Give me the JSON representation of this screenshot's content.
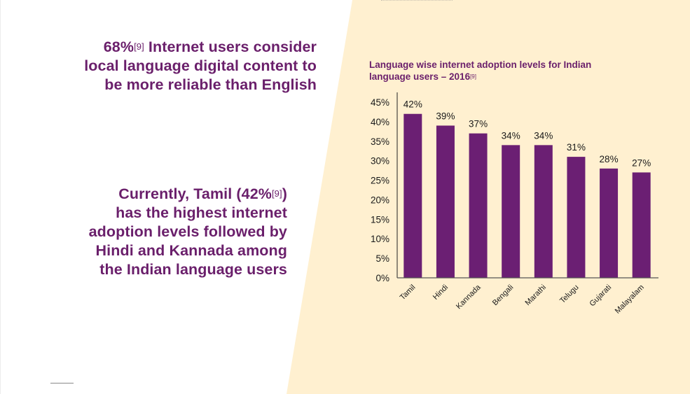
{
  "headline_1": {
    "value": "68%",
    "ref": "[9]",
    "text_line1": " Internet users consider",
    "text_line2": "local language digital content to",
    "text_line3": "be more reliable than English"
  },
  "headline_2": {
    "line1_pre": "Currently, Tamil (42%",
    "ref": "[9]",
    "line1_post": ")",
    "line2": "has the highest internet",
    "line3": "adoption levels followed by",
    "line4": "Hindi and Kannada among",
    "line5": "the Indian language users"
  },
  "colors": {
    "accent": "#6a1f6b",
    "bar": "#6b1f73",
    "panel_bg": "#fff0d0"
  },
  "chart_data": {
    "type": "bar",
    "title": "Language wise internet adoption levels for Indian language users – 2016",
    "title_line1": "Language wise internet adoption levels for Indian",
    "title_line2": "language users – 2016",
    "title_ref": "[9]",
    "categories": [
      "Tamil",
      "Hindi",
      "Kannada",
      "Bengali",
      "Marathi",
      "Telugu",
      "Gujarati",
      "Malayalam"
    ],
    "values": [
      42,
      39,
      37,
      34,
      34,
      31,
      28,
      27
    ],
    "data_labels": [
      "42%",
      "39%",
      "37%",
      "34%",
      "34%",
      "31%",
      "28%",
      "27%"
    ],
    "xlabel": "",
    "ylabel": "",
    "ylim": [
      0,
      45
    ],
    "yticks": [
      0,
      5,
      10,
      15,
      20,
      25,
      30,
      35,
      40,
      45
    ],
    "ytick_labels": [
      "0%",
      "5%",
      "10%",
      "15%",
      "20%",
      "25%",
      "30%",
      "35%",
      "40%",
      "45%"
    ],
    "grid": false,
    "legend": "none",
    "x_label_rotation": "-45deg"
  }
}
